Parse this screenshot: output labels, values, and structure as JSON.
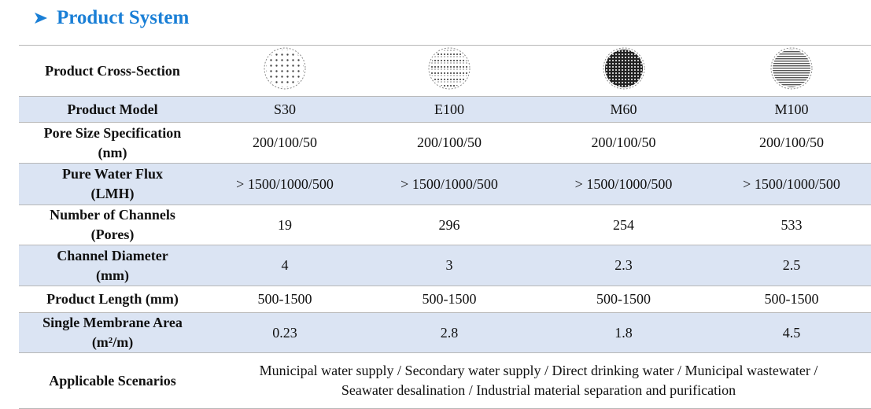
{
  "header": {
    "title": "Product System"
  },
  "table": {
    "rows": [
      {
        "label": [
          "Product Cross-Section"
        ],
        "values": []
      },
      {
        "label": [
          "Product Model"
        ],
        "values": [
          "S30",
          "E100",
          "M60",
          "M100"
        ]
      },
      {
        "label": [
          "Pore Size Specification",
          "(nm)"
        ],
        "values": [
          "200/100/50",
          "200/100/50",
          "200/100/50",
          "200/100/50"
        ]
      },
      {
        "label": [
          "Pure Water Flux",
          "(LMH)"
        ],
        "values": [
          "> 1500/1000/500",
          "> 1500/1000/500",
          "> 1500/1000/500",
          "> 1500/1000/500"
        ]
      },
      {
        "label": [
          "Number of Channels",
          "(Pores)"
        ],
        "values": [
          "19",
          "296",
          "254",
          "533"
        ]
      },
      {
        "label": [
          "Channel Diameter",
          "(mm)"
        ],
        "values": [
          "4",
          "3",
          "2.3",
          "2.5"
        ]
      },
      {
        "label": [
          "Product Length (mm)"
        ],
        "values": [
          "500-1500",
          "500-1500",
          "500-1500",
          "500-1500"
        ]
      },
      {
        "label": [
          "Single Membrane Area",
          "(m²/m)"
        ],
        "values": [
          "0.23",
          "2.8",
          "1.8",
          "4.5"
        ]
      },
      {
        "label": [
          "Applicable Scenarios"
        ],
        "span": [
          "Municipal water supply / Secondary water supply / Direct drinking water / Municipal wastewater /",
          "Seawater desalination / Industrial material separation and purification"
        ]
      }
    ]
  }
}
